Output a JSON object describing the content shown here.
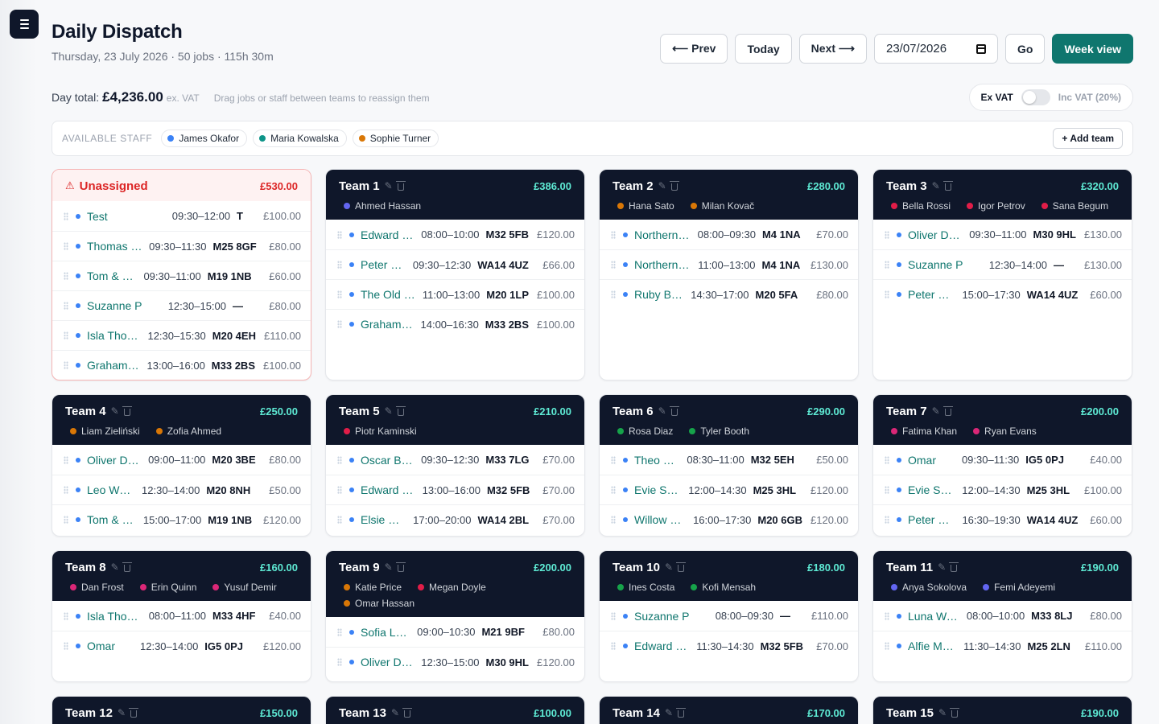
{
  "header": {
    "title": "Daily Dispatch",
    "subtitle": "Thursday, 23 July 2026 · 50 jobs · 115h 30m"
  },
  "nav": {
    "prev": "⟵ Prev",
    "today": "Today",
    "next": "Next ⟶",
    "date_value": "23/07/2026",
    "go": "Go",
    "week_view": "Week view"
  },
  "summary": {
    "label": "Day total:",
    "amount": "£4,236.00",
    "vat_note": "ex. VAT",
    "hint": "Drag jobs or staff between teams to reassign them"
  },
  "vat_toggle": {
    "left": "Ex VAT",
    "right": "Inc VAT (20%)",
    "inc_vat": false
  },
  "available_staff": {
    "label": "AVAILABLE STAFF",
    "people": [
      {
        "name": "James Okafor",
        "color": "#3b82f6"
      },
      {
        "name": "Maria Kowalska",
        "color": "#0d9488"
      },
      {
        "name": "Sophie Turner",
        "color": "#d97706"
      }
    ],
    "add_team": "+ Add team"
  },
  "cards": [
    {
      "name": "Unassigned",
      "total": "£530.00",
      "unassigned": true,
      "height": 263,
      "members": [],
      "jobs": [
        {
          "name": "Test",
          "time": "09:30–12:00",
          "postcode": "T",
          "price": "£100.00"
        },
        {
          "name": "Thomas Wright",
          "time": "09:30–11:30",
          "postcode": "M25 8GF",
          "price": "£80.00"
        },
        {
          "name": "Tom & Priya",
          "time": "09:30–11:00",
          "postcode": "M19 1NB",
          "price": "£60.00"
        },
        {
          "name": "Suzanne P",
          "time": "12:30–15:00",
          "postcode": "—",
          "price": "£80.00"
        },
        {
          "name": "Isla Thompson",
          "time": "12:30–15:30",
          "postcode": "M20 4EH",
          "price": "£110.00"
        },
        {
          "name": "Graham Hughes",
          "time": "13:00–16:00",
          "postcode": "M33 2BS",
          "price": "£100.00"
        }
      ]
    },
    {
      "name": "Team 1",
      "total": "£386.00",
      "height": 263,
      "members": [
        {
          "name": "Ahmed Hassan",
          "color": "#6366f1"
        }
      ],
      "jobs": [
        {
          "name": "Edward Collins",
          "time": "08:00–10:00",
          "postcode": "M32 5FB",
          "price": "£120.00"
        },
        {
          "name": "Peter Jones",
          "time": "09:30–12:30",
          "postcode": "WA14 4UZ",
          "price": "£66.00"
        },
        {
          "name": "The Old Rectory",
          "time": "11:00–13:00",
          "postcode": "M20 1LP",
          "price": "£100.00"
        },
        {
          "name": "Graham Hughes",
          "time": "14:00–16:30",
          "postcode": "M33 2BS",
          "price": "£100.00"
        }
      ]
    },
    {
      "name": "Team 2",
      "total": "£280.00",
      "height": 263,
      "members": [
        {
          "name": "Hana Sato",
          "color": "#d97706"
        },
        {
          "name": "Milan Kovač",
          "color": "#d97706"
        }
      ],
      "jobs": [
        {
          "name": "Northern Lofts",
          "time": "08:00–09:30",
          "postcode": "M4 1NA",
          "price": "£70.00"
        },
        {
          "name": "Northern Lofts",
          "time": "11:00–13:00",
          "postcode": "M4 1NA",
          "price": "£130.00"
        },
        {
          "name": "Ruby Baker",
          "time": "14:30–17:00",
          "postcode": "M20 5FA",
          "price": "£80.00"
        }
      ]
    },
    {
      "name": "Team 3",
      "total": "£320.00",
      "height": 263,
      "members": [
        {
          "name": "Bella Rossi",
          "color": "#e11d48"
        },
        {
          "name": "Igor Petrov",
          "color": "#e11d48"
        },
        {
          "name": "Sana Begum",
          "color": "#e11d48"
        }
      ],
      "jobs": [
        {
          "name": "Oliver Dawson",
          "time": "09:30–11:00",
          "postcode": "M30 9HL",
          "price": "£130.00"
        },
        {
          "name": "Suzanne P",
          "time": "12:30–14:00",
          "postcode": "—",
          "price": "£130.00"
        },
        {
          "name": "Peter & Anne",
          "time": "15:00–17:30",
          "postcode": "WA14 4UZ",
          "price": "£60.00"
        }
      ]
    },
    {
      "name": "Team 4",
      "total": "£250.00",
      "height": 177,
      "members": [
        {
          "name": "Liam Zieliński",
          "color": "#d97706"
        },
        {
          "name": "Zofia Ahmed",
          "color": "#d97706"
        }
      ],
      "jobs": [
        {
          "name": "Oliver Dawson",
          "time": "09:00–11:00",
          "postcode": "M20 3BE",
          "price": "£80.00"
        },
        {
          "name": "Leo Woods",
          "time": "12:30–14:00",
          "postcode": "M20 8NH",
          "price": "£50.00"
        },
        {
          "name": "Tom & Priya",
          "time": "15:00–17:00",
          "postcode": "M19 1NB",
          "price": "£120.00"
        }
      ]
    },
    {
      "name": "Team 5",
      "total": "£210.00",
      "height": 177,
      "members": [
        {
          "name": "Piotr Kaminski",
          "color": "#e11d48"
        }
      ],
      "jobs": [
        {
          "name": "Oscar Bennett",
          "time": "09:30–12:30",
          "postcode": "M33 7LG",
          "price": "£70.00"
        },
        {
          "name": "Edward Collins",
          "time": "13:00–16:00",
          "postcode": "M32 5FB",
          "price": "£70.00"
        },
        {
          "name": "Elsie Parker",
          "time": "17:00–20:00",
          "postcode": "WA14 2BL",
          "price": "£70.00"
        }
      ]
    },
    {
      "name": "Team 6",
      "total": "£290.00",
      "height": 177,
      "members": [
        {
          "name": "Rosa Diaz",
          "color": "#16a34a"
        },
        {
          "name": "Tyler Booth",
          "color": "#16a34a"
        }
      ],
      "jobs": [
        {
          "name": "Theo Hart",
          "time": "08:30–11:00",
          "postcode": "M32 5EH",
          "price": "£50.00"
        },
        {
          "name": "Evie Smith",
          "time": "12:00–14:30",
          "postcode": "M25 3HL",
          "price": "£120.00"
        },
        {
          "name": "Willow Grange",
          "time": "16:00–17:30",
          "postcode": "M20 6GB",
          "price": "£120.00"
        }
      ]
    },
    {
      "name": "Team 7",
      "total": "£200.00",
      "height": 177,
      "members": [
        {
          "name": "Fatima Khan",
          "color": "#db2777"
        },
        {
          "name": "Ryan Evans",
          "color": "#db2777"
        }
      ],
      "jobs": [
        {
          "name": "Omar",
          "time": "09:30–11:30",
          "postcode": "IG5 0PJ",
          "price": "£40.00"
        },
        {
          "name": "Evie Smith",
          "time": "12:00–14:30",
          "postcode": "M25 3HL",
          "price": "£100.00"
        },
        {
          "name": "Peter & Anne",
          "time": "16:30–19:30",
          "postcode": "WA14 4UZ",
          "price": "£60.00"
        }
      ]
    },
    {
      "name": "Team 8",
      "total": "£160.00",
      "height": 164,
      "members": [
        {
          "name": "Dan Frost",
          "color": "#db2777"
        },
        {
          "name": "Erin Quinn",
          "color": "#db2777"
        },
        {
          "name": "Yusuf Demir",
          "color": "#db2777"
        }
      ],
      "jobs": [
        {
          "name": "Isla Thompson",
          "time": "08:00–11:00",
          "postcode": "M33 4HF",
          "price": "£40.00"
        },
        {
          "name": "Omar",
          "time": "12:30–14:00",
          "postcode": "IG5 0PJ",
          "price": "£120.00"
        }
      ]
    },
    {
      "name": "Team 9",
      "total": "£200.00",
      "height": 164,
      "members": [
        {
          "name": "Katie Price",
          "color": "#d97706"
        },
        {
          "name": "Megan Doyle",
          "color": "#e11d48"
        },
        {
          "name": "Omar Hassan",
          "color": "#d97706"
        }
      ],
      "jobs": [
        {
          "name": "Sofia Lopez",
          "time": "09:00–10:30",
          "postcode": "M21 9BF",
          "price": "£80.00"
        },
        {
          "name": "Oliver Dawson",
          "time": "12:30–15:00",
          "postcode": "M30 9HL",
          "price": "£120.00"
        }
      ]
    },
    {
      "name": "Team 10",
      "total": "£180.00",
      "height": 164,
      "members": [
        {
          "name": "Ines Costa",
          "color": "#16a34a"
        },
        {
          "name": "Kofi Mensah",
          "color": "#16a34a"
        }
      ],
      "jobs": [
        {
          "name": "Suzanne P",
          "time": "08:00–09:30",
          "postcode": "—",
          "price": "£110.00"
        },
        {
          "name": "Edward Collins",
          "time": "11:30–14:30",
          "postcode": "M32 5FB",
          "price": "£70.00"
        }
      ]
    },
    {
      "name": "Team 11",
      "total": "£190.00",
      "height": 164,
      "members": [
        {
          "name": "Anya Sokolova",
          "color": "#6366f1"
        },
        {
          "name": "Femi Adeyemi",
          "color": "#6366f1"
        }
      ],
      "jobs": [
        {
          "name": "Luna Walker",
          "time": "08:00–10:00",
          "postcode": "M33 8LJ",
          "price": "£80.00"
        },
        {
          "name": "Alfie Marsh",
          "time": "11:30–14:30",
          "postcode": "M25 2LN",
          "price": "£110.00"
        }
      ]
    },
    {
      "name": "Team 12",
      "total": "£150.00",
      "height": 60,
      "members": [],
      "jobs": []
    },
    {
      "name": "Team 13",
      "total": "£100.00",
      "height": 60,
      "members": [],
      "jobs": []
    },
    {
      "name": "Team 14",
      "total": "£170.00",
      "height": 60,
      "members": [],
      "jobs": []
    },
    {
      "name": "Team 15",
      "total": "£190.00",
      "height": 60,
      "members": [],
      "jobs": []
    }
  ]
}
